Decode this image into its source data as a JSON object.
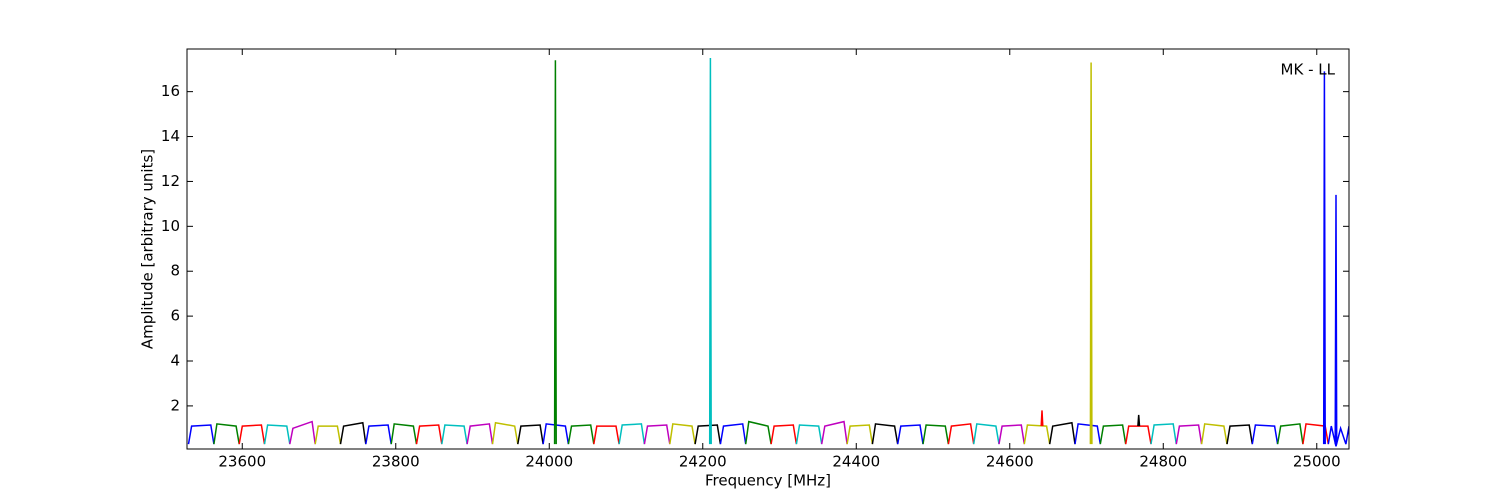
{
  "chart_data": {
    "type": "line",
    "xlabel": "Frequency [MHz]",
    "ylabel": "Amplitude [arbitrary units]",
    "annotation": "MK - LL",
    "xlim": [
      23528,
      25042
    ],
    "ylim": [
      0.08,
      17.9
    ],
    "xticks": [
      23600,
      23800,
      24000,
      24200,
      24400,
      24600,
      24800,
      25000
    ],
    "yticks": [
      2,
      4,
      6,
      8,
      10,
      12,
      14,
      16
    ],
    "series": [
      {
        "color": "#0000ff",
        "x": [
          23530,
          23534,
          23559,
          23563
        ],
        "values": [
          0.3,
          1.1,
          1.15,
          0.3
        ]
      },
      {
        "color": "#008000",
        "x": [
          23563,
          23567,
          23592,
          23596
        ],
        "values": [
          0.3,
          1.2,
          1.1,
          0.3
        ]
      },
      {
        "color": "#ff0000",
        "x": [
          23596,
          23600,
          23625,
          23629
        ],
        "values": [
          0.3,
          1.1,
          1.15,
          0.3
        ]
      },
      {
        "color": "#00bfbf",
        "x": [
          23629,
          23633,
          23658,
          23662
        ],
        "values": [
          0.3,
          1.15,
          1.1,
          0.3
        ]
      },
      {
        "color": "#bf00bf",
        "x": [
          23662,
          23666,
          23691,
          23695
        ],
        "values": [
          0.3,
          1.0,
          1.3,
          0.3
        ]
      },
      {
        "color": "#bfbf00",
        "x": [
          23695,
          23699,
          23724,
          23728
        ],
        "values": [
          0.3,
          1.1,
          1.1,
          0.3
        ]
      },
      {
        "color": "#000000",
        "x": [
          23728,
          23732,
          23757,
          23761
        ],
        "values": [
          0.3,
          1.1,
          1.25,
          0.3
        ]
      },
      {
        "color": "#0000ff",
        "x": [
          23761,
          23765,
          23790,
          23794
        ],
        "values": [
          0.3,
          1.1,
          1.15,
          0.3
        ]
      },
      {
        "color": "#008000",
        "x": [
          23794,
          23798,
          23823,
          23827
        ],
        "values": [
          0.3,
          1.2,
          1.1,
          0.3
        ]
      },
      {
        "color": "#ff0000",
        "x": [
          23827,
          23831,
          23856,
          23860
        ],
        "values": [
          0.3,
          1.1,
          1.15,
          0.3
        ]
      },
      {
        "color": "#00bfbf",
        "x": [
          23860,
          23864,
          23889,
          23893
        ],
        "values": [
          0.3,
          1.15,
          1.1,
          0.3
        ]
      },
      {
        "color": "#bf00bf",
        "x": [
          23893,
          23897,
          23922,
          23926
        ],
        "values": [
          0.3,
          1.1,
          1.2,
          0.3
        ]
      },
      {
        "color": "#bfbf00",
        "x": [
          23926,
          23930,
          23955,
          23959
        ],
        "values": [
          0.3,
          1.25,
          1.1,
          0.3
        ]
      },
      {
        "color": "#000000",
        "x": [
          23959,
          23963,
          23988,
          23992
        ],
        "values": [
          0.3,
          1.1,
          1.15,
          0.3
        ]
      },
      {
        "color": "#0000ff",
        "x": [
          23992,
          23996,
          24021,
          24025
        ],
        "values": [
          0.3,
          1.2,
          1.1,
          0.3
        ]
      },
      {
        "color": "#008000",
        "x": [
          24025,
          24029,
          24054,
          24058
        ],
        "values": [
          0.3,
          1.1,
          1.15,
          0.3
        ]
      },
      {
        "color": "#ff0000",
        "x": [
          24058,
          24062,
          24087,
          24091
        ],
        "values": [
          0.3,
          1.1,
          1.1,
          0.3
        ]
      },
      {
        "color": "#00bfbf",
        "x": [
          24091,
          24095,
          24120,
          24124
        ],
        "values": [
          0.3,
          1.15,
          1.2,
          0.3
        ]
      },
      {
        "color": "#bf00bf",
        "x": [
          24124,
          24128,
          24153,
          24157
        ],
        "values": [
          0.3,
          1.1,
          1.15,
          0.3
        ]
      },
      {
        "color": "#bfbf00",
        "x": [
          24157,
          24161,
          24186,
          24190
        ],
        "values": [
          0.3,
          1.2,
          1.1,
          0.3
        ]
      },
      {
        "color": "#000000",
        "x": [
          24190,
          24194,
          24219,
          24223
        ],
        "values": [
          0.3,
          1.1,
          1.15,
          0.3
        ]
      },
      {
        "color": "#0000ff",
        "x": [
          24223,
          24227,
          24252,
          24256
        ],
        "values": [
          0.3,
          1.1,
          1.2,
          0.3
        ]
      },
      {
        "color": "#008000",
        "x": [
          24256,
          24260,
          24285,
          24289
        ],
        "values": [
          0.3,
          1.3,
          1.1,
          0.3
        ]
      },
      {
        "color": "#ff0000",
        "x": [
          24289,
          24293,
          24318,
          24322
        ],
        "values": [
          0.3,
          1.1,
          1.15,
          0.3
        ]
      },
      {
        "color": "#00bfbf",
        "x": [
          24322,
          24326,
          24351,
          24355
        ],
        "values": [
          0.3,
          1.15,
          1.1,
          0.3
        ]
      },
      {
        "color": "#bf00bf",
        "x": [
          24355,
          24359,
          24384,
          24388
        ],
        "values": [
          0.3,
          1.1,
          1.3,
          0.3
        ]
      },
      {
        "color": "#bfbf00",
        "x": [
          24388,
          24392,
          24417,
          24421
        ],
        "values": [
          0.3,
          1.1,
          1.15,
          0.3
        ]
      },
      {
        "color": "#000000",
        "x": [
          24421,
          24425,
          24450,
          24454
        ],
        "values": [
          0.3,
          1.2,
          1.1,
          0.3
        ]
      },
      {
        "color": "#0000ff",
        "x": [
          24454,
          24458,
          24483,
          24487
        ],
        "values": [
          0.3,
          1.1,
          1.15,
          0.3
        ]
      },
      {
        "color": "#008000",
        "x": [
          24487,
          24491,
          24516,
          24520
        ],
        "values": [
          0.3,
          1.15,
          1.1,
          0.3
        ]
      },
      {
        "color": "#ff0000",
        "x": [
          24520,
          24524,
          24549,
          24553
        ],
        "values": [
          0.3,
          1.1,
          1.2,
          0.3
        ]
      },
      {
        "color": "#00bfbf",
        "x": [
          24553,
          24557,
          24582,
          24586
        ],
        "values": [
          0.3,
          1.2,
          1.1,
          0.3
        ]
      },
      {
        "color": "#bf00bf",
        "x": [
          24586,
          24590,
          24615,
          24619
        ],
        "values": [
          0.3,
          1.1,
          1.15,
          0.3
        ]
      },
      {
        "color": "#bfbf00",
        "x": [
          24619,
          24623,
          24648,
          24652
        ],
        "values": [
          0.3,
          1.15,
          1.1,
          0.3
        ]
      },
      {
        "color": "#000000",
        "x": [
          24652,
          24656,
          24681,
          24685
        ],
        "values": [
          0.3,
          1.1,
          1.25,
          0.3
        ]
      },
      {
        "color": "#0000ff",
        "x": [
          24685,
          24689,
          24714,
          24718
        ],
        "values": [
          0.3,
          1.2,
          1.1,
          0.3
        ]
      },
      {
        "color": "#008000",
        "x": [
          24718,
          24722,
          24747,
          24751
        ],
        "values": [
          0.3,
          1.1,
          1.15,
          0.3
        ]
      },
      {
        "color": "#ff0000",
        "x": [
          24751,
          24755,
          24780,
          24784
        ],
        "values": [
          0.3,
          1.1,
          1.1,
          0.3
        ]
      },
      {
        "color": "#00bfbf",
        "x": [
          24784,
          24788,
          24813,
          24817
        ],
        "values": [
          0.3,
          1.15,
          1.2,
          0.3
        ]
      },
      {
        "color": "#bf00bf",
        "x": [
          24817,
          24821,
          24846,
          24850
        ],
        "values": [
          0.3,
          1.1,
          1.15,
          0.3
        ]
      },
      {
        "color": "#bfbf00",
        "x": [
          24850,
          24854,
          24879,
          24883
        ],
        "values": [
          0.3,
          1.2,
          1.1,
          0.3
        ]
      },
      {
        "color": "#000000",
        "x": [
          24883,
          24887,
          24912,
          24916
        ],
        "values": [
          0.3,
          1.1,
          1.15,
          0.3
        ]
      },
      {
        "color": "#0000ff",
        "x": [
          24916,
          24920,
          24945,
          24949
        ],
        "values": [
          0.3,
          1.15,
          1.1,
          0.3
        ]
      },
      {
        "color": "#008000",
        "x": [
          24949,
          24953,
          24978,
          24982
        ],
        "values": [
          0.3,
          1.1,
          1.2,
          0.3
        ]
      },
      {
        "color": "#ff0000",
        "x": [
          24982,
          24986,
          25011,
          25015
        ],
        "values": [
          0.3,
          1.2,
          1.1,
          0.3
        ]
      },
      {
        "color": "#0000ff",
        "x": [
          25015,
          25019,
          25025,
          25031,
          25038,
          25042
        ],
        "values": [
          0.3,
          1.1,
          0.2,
          1.0,
          0.3,
          1.1
        ]
      },
      {
        "color": "#008000",
        "x": [
          24007,
          24008,
          24009
        ],
        "values": [
          0.3,
          17.4,
          0.3
        ]
      },
      {
        "color": "#00bfbf",
        "x": [
          24209,
          24210,
          24211
        ],
        "values": [
          0.3,
          17.5,
          0.3
        ]
      },
      {
        "color": "#bfbf00",
        "x": [
          24705,
          24706,
          24707
        ],
        "values": [
          0.3,
          17.3,
          0.3
        ]
      },
      {
        "color": "#0000ff",
        "x": [
          25009,
          25010,
          25011
        ],
        "values": [
          0.3,
          16.9,
          0.3
        ]
      },
      {
        "color": "#0000ff",
        "x": [
          25024,
          25025,
          25026
        ],
        "values": [
          0.3,
          11.4,
          0.3
        ]
      },
      {
        "color": "#ff0000",
        "x": [
          24641,
          24642,
          24643
        ],
        "values": [
          1.1,
          1.8,
          1.1
        ]
      },
      {
        "color": "#000000",
        "x": [
          24767,
          24768,
          24769
        ],
        "values": [
          1.1,
          1.6,
          1.1
        ]
      }
    ]
  }
}
